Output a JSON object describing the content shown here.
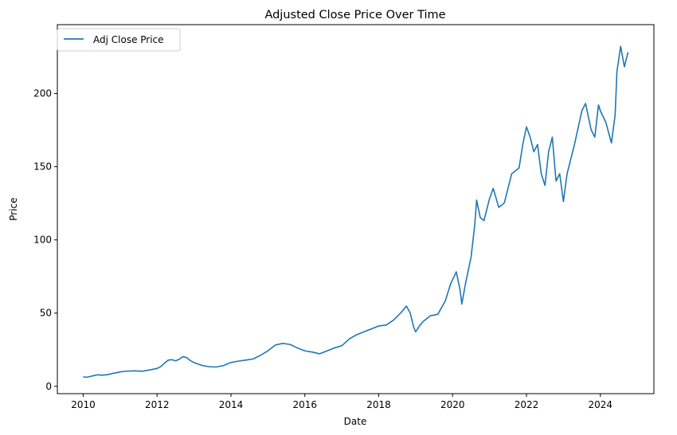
{
  "chart_data": {
    "type": "line",
    "title": "Adjusted Close Price Over Time",
    "xlabel": "Date",
    "ylabel": "Price",
    "xlim": [
      2009.3,
      2025.45
    ],
    "ylim": [
      -5,
      247
    ],
    "x_ticks": [
      2010,
      2012,
      2014,
      2016,
      2018,
      2020,
      2022,
      2024
    ],
    "y_ticks": [
      0,
      50,
      100,
      150,
      200
    ],
    "grid": false,
    "legend": {
      "position": "top-left",
      "entries": [
        "Adj Close Price"
      ]
    },
    "series": [
      {
        "name": "Adj Close Price",
        "color": "#1f77b4",
        "points": [
          [
            2010.0,
            6.5
          ],
          [
            2010.1,
            6.2
          ],
          [
            2010.2,
            6.8
          ],
          [
            2010.3,
            7.4
          ],
          [
            2010.4,
            7.9
          ],
          [
            2010.5,
            7.6
          ],
          [
            2010.6,
            7.8
          ],
          [
            2010.7,
            8.2
          ],
          [
            2010.8,
            8.8
          ],
          [
            2010.9,
            9.3
          ],
          [
            2011.0,
            9.9
          ],
          [
            2011.2,
            10.4
          ],
          [
            2011.4,
            10.6
          ],
          [
            2011.6,
            10.3
          ],
          [
            2011.8,
            11.2
          ],
          [
            2012.0,
            12.2
          ],
          [
            2012.1,
            13.5
          ],
          [
            2012.2,
            15.8
          ],
          [
            2012.3,
            17.9
          ],
          [
            2012.4,
            18.2
          ],
          [
            2012.5,
            17.4
          ],
          [
            2012.6,
            18.5
          ],
          [
            2012.7,
            20.3
          ],
          [
            2012.8,
            19.6
          ],
          [
            2012.9,
            17.6
          ],
          [
            2013.0,
            16.2
          ],
          [
            2013.2,
            14.4
          ],
          [
            2013.4,
            13.4
          ],
          [
            2013.6,
            13.2
          ],
          [
            2013.8,
            14.2
          ],
          [
            2014.0,
            16.3
          ],
          [
            2014.2,
            17.2
          ],
          [
            2014.4,
            17.9
          ],
          [
            2014.6,
            18.7
          ],
          [
            2014.8,
            21.2
          ],
          [
            2015.0,
            24.2
          ],
          [
            2015.2,
            28.2
          ],
          [
            2015.4,
            29.3
          ],
          [
            2015.6,
            28.6
          ],
          [
            2015.8,
            26.2
          ],
          [
            2016.0,
            24.2
          ],
          [
            2016.2,
            23.4
          ],
          [
            2016.4,
            22.2
          ],
          [
            2016.6,
            24.2
          ],
          [
            2016.8,
            26.2
          ],
          [
            2017.0,
            27.7
          ],
          [
            2017.2,
            32.3
          ],
          [
            2017.4,
            35.2
          ],
          [
            2017.6,
            37.2
          ],
          [
            2017.8,
            39.2
          ],
          [
            2018.0,
            41.2
          ],
          [
            2018.2,
            41.8
          ],
          [
            2018.4,
            45.2
          ],
          [
            2018.6,
            50.2
          ],
          [
            2018.75,
            54.8
          ],
          [
            2018.85,
            50.2
          ],
          [
            2018.95,
            40.2
          ],
          [
            2019.0,
            37.2
          ],
          [
            2019.1,
            41.2
          ],
          [
            2019.2,
            44.2
          ],
          [
            2019.4,
            48.2
          ],
          [
            2019.6,
            49.2
          ],
          [
            2019.8,
            58.2
          ],
          [
            2019.95,
            70.2
          ],
          [
            2020.1,
            78.2
          ],
          [
            2020.2,
            66.2
          ],
          [
            2020.25,
            56.2
          ],
          [
            2020.35,
            70.2
          ],
          [
            2020.5,
            88.2
          ],
          [
            2020.6,
            110.2
          ],
          [
            2020.65,
            127.2
          ],
          [
            2020.75,
            115.2
          ],
          [
            2020.85,
            113.2
          ],
          [
            2021.0,
            128.2
          ],
          [
            2021.1,
            135.2
          ],
          [
            2021.25,
            122.2
          ],
          [
            2021.4,
            125.2
          ],
          [
            2021.6,
            145.2
          ],
          [
            2021.8,
            149.2
          ],
          [
            2021.9,
            165.2
          ],
          [
            2022.0,
            177.2
          ],
          [
            2022.1,
            170.2
          ],
          [
            2022.2,
            160.2
          ],
          [
            2022.3,
            165.2
          ],
          [
            2022.4,
            145.2
          ],
          [
            2022.5,
            137.2
          ],
          [
            2022.6,
            160.2
          ],
          [
            2022.7,
            170.2
          ],
          [
            2022.8,
            140.2
          ],
          [
            2022.9,
            145.2
          ],
          [
            2023.0,
            126.2
          ],
          [
            2023.1,
            145.2
          ],
          [
            2023.3,
            165.2
          ],
          [
            2023.5,
            188.2
          ],
          [
            2023.6,
            193.2
          ],
          [
            2023.75,
            175.2
          ],
          [
            2023.85,
            170.2
          ],
          [
            2023.95,
            192.2
          ],
          [
            2024.0,
            188.2
          ],
          [
            2024.15,
            180.2
          ],
          [
            2024.3,
            166.2
          ],
          [
            2024.4,
            185.2
          ],
          [
            2024.45,
            215.2
          ],
          [
            2024.55,
            232.2
          ],
          [
            2024.65,
            218.2
          ],
          [
            2024.75,
            228.2
          ]
        ]
      }
    ]
  }
}
